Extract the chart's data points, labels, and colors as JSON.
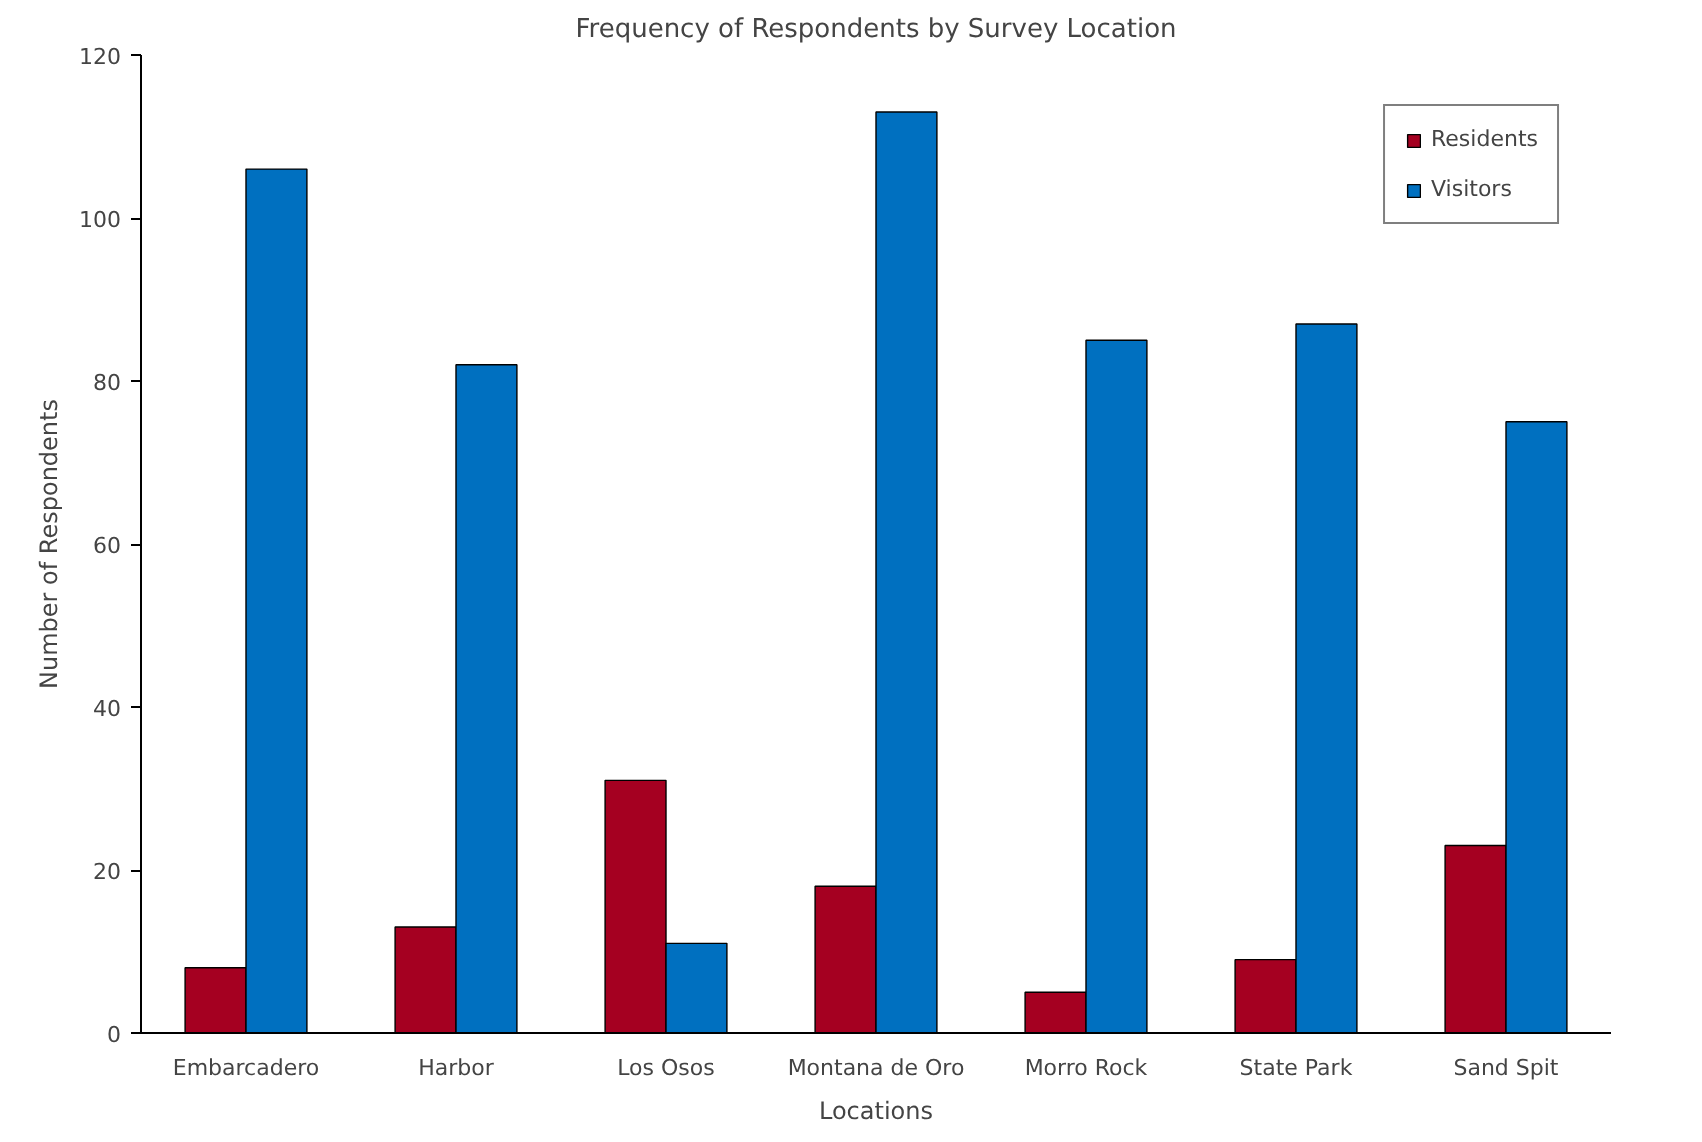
{
  "chart_data": {
    "type": "bar",
    "title": "Frequency of Respondents by Survey Location",
    "xlabel": "Locations",
    "ylabel": "Number of Respondents",
    "categories": [
      "Embarcadero",
      "Harbor",
      "Los Osos",
      "Montana de Oro",
      "Morro Rock",
      "State Park",
      "Sand Spit"
    ],
    "series": [
      {
        "name": "Residents",
        "color": "#a50021",
        "values": [
          8,
          13,
          31,
          18,
          5,
          9,
          23
        ]
      },
      {
        "name": "Visitors",
        "color": "#0070c0",
        "values": [
          106,
          82,
          11,
          113,
          85,
          87,
          75
        ]
      }
    ],
    "ylim": [
      0,
      120
    ],
    "yticks": [
      0,
      20,
      40,
      60,
      80,
      100,
      120
    ],
    "grid": false,
    "legend": "top right"
  }
}
